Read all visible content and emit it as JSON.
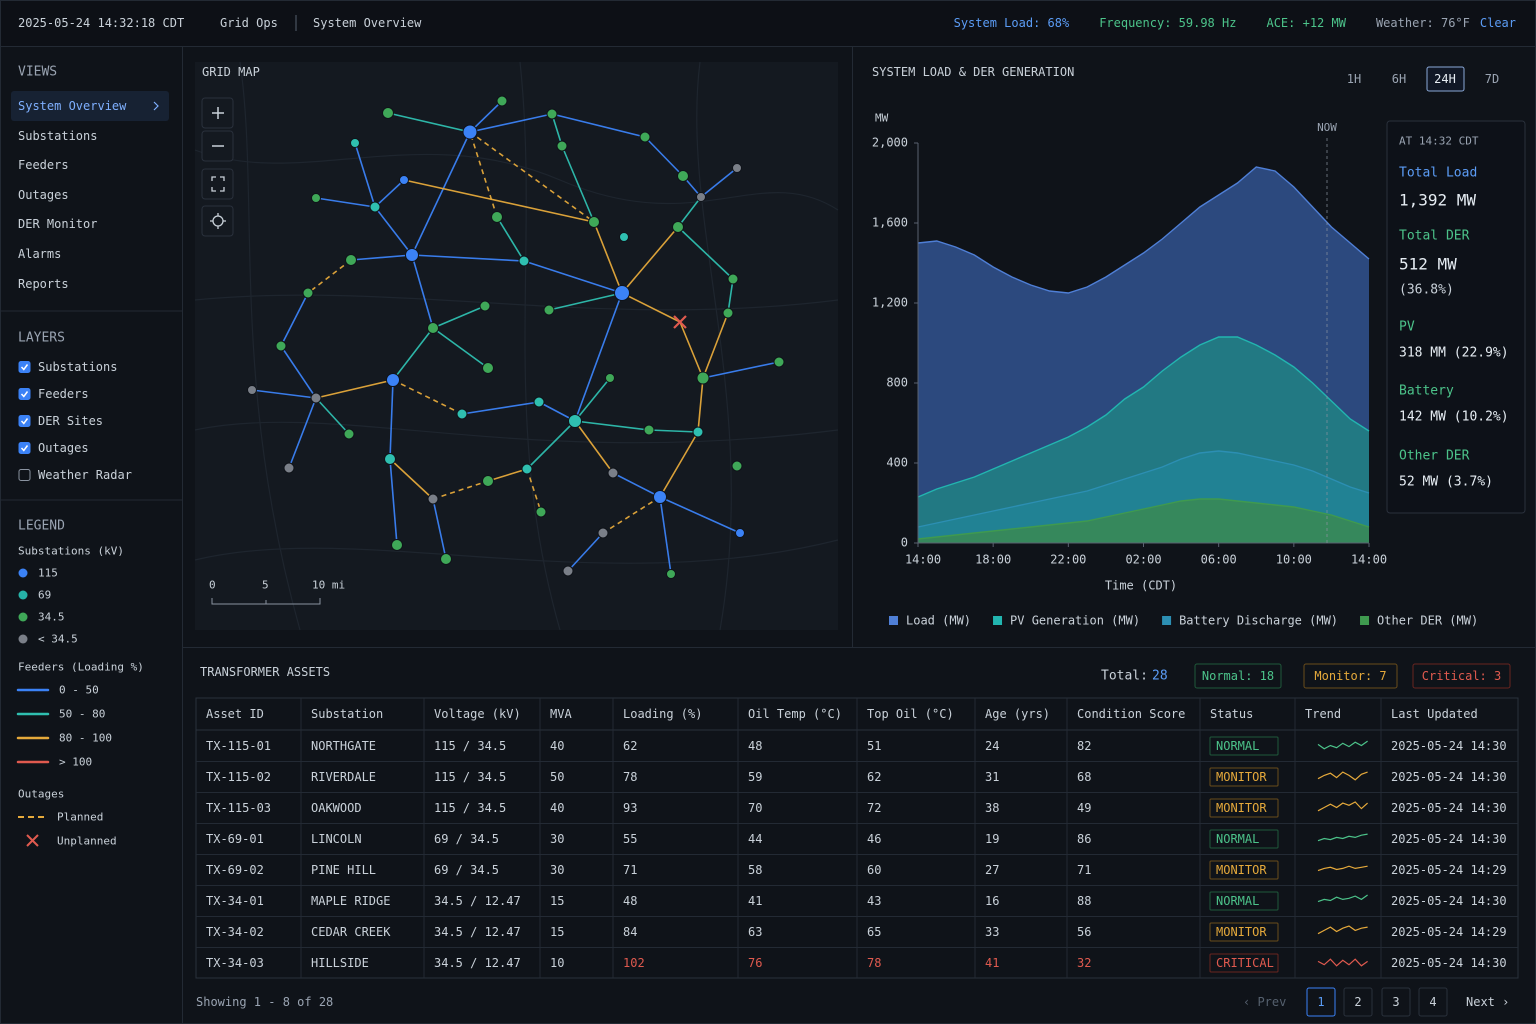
{
  "header": {
    "timestamp": "2025-05-24 14:32:18 CDT",
    "app": "Grid Ops",
    "page": "System Overview",
    "status": [
      {
        "text": "System Load: 68%",
        "color": "#5b9cf5"
      },
      {
        "text": "Frequency: 59.98 Hz",
        "color": "#4cc38a"
      },
      {
        "text": "ACE: +12 MW",
        "color": "#4cc38a"
      },
      {
        "text": "Weather: 76°F",
        "color": "#9aa4b2"
      },
      {
        "text": "Clear",
        "color": "#5b9cf5"
      }
    ]
  },
  "sidebar": {
    "views": {
      "title": "VIEWS",
      "items": [
        {
          "label": "System Overview",
          "active": true
        },
        {
          "label": "Substations"
        },
        {
          "label": "Feeders"
        },
        {
          "label": "Outages"
        },
        {
          "label": "DER Monitor"
        },
        {
          "label": "Alarms"
        },
        {
          "label": "Reports"
        }
      ]
    },
    "layers": {
      "title": "LAYERS",
      "items": [
        {
          "label": "Substations",
          "checked": true
        },
        {
          "label": "Feeders",
          "checked": true
        },
        {
          "label": "DER Sites",
          "checked": true
        },
        {
          "label": "Outages",
          "checked": true
        },
        {
          "label": "Weather Radar",
          "checked": false
        }
      ]
    },
    "legend": {
      "title": "LEGEND",
      "substations": {
        "title": "Substations (kV)",
        "items": [
          {
            "label": "115",
            "color": "#3b82f6"
          },
          {
            "label": "69",
            "color": "#26b3a8"
          },
          {
            "label": "34.5",
            "color": "#3fa858"
          },
          {
            "label": "< 34.5",
            "color": "#7a7f88"
          }
        ]
      },
      "feeders": {
        "title": "Feeders (Loading %)",
        "items": [
          {
            "label": "0 - 50",
            "color": "#3b82f6"
          },
          {
            "label": "50 - 80",
            "color": "#2fbfb0"
          },
          {
            "label": "80 - 100",
            "color": "#e5a93b"
          },
          {
            "label": "> 100",
            "color": "#e05a4f"
          }
        ]
      },
      "outages": {
        "title": "Outages",
        "items": [
          "Planned",
          "Unplanned"
        ]
      }
    }
  },
  "map": {
    "title": "GRID MAP",
    "scale": [
      "0",
      "5",
      "10 mi"
    ]
  },
  "chart_panel": {
    "title": "SYSTEM LOAD & DER GENERATION",
    "ranges": [
      {
        "label": "1H"
      },
      {
        "label": "6H"
      },
      {
        "label": "24H",
        "active": true
      },
      {
        "label": "7D"
      }
    ],
    "now": "NOW",
    "tooltip": {
      "title": "AT 14:32 CDT",
      "items": [
        {
          "label": "Total Load",
          "value": "1,392 MW"
        },
        {
          "label": "Total DER",
          "value": "512 MW",
          "note": "(36.8%)"
        },
        {
          "label": "PV",
          "value": "318 MM (22.9%)"
        },
        {
          "label": "Battery",
          "value": "142 MW (10.2%)"
        },
        {
          "label": "Other DER",
          "value": "52 MW (3.7%)"
        }
      ]
    }
  },
  "chart_data": {
    "type": "area",
    "y_label": "MW",
    "x_label": "Time (CDT)",
    "categories": [
      "14:00",
      null,
      null,
      null,
      "18:00",
      null,
      null,
      null,
      "22:00",
      null,
      null,
      null,
      "02:00",
      null,
      null,
      null,
      "06:00",
      null,
      null,
      null,
      "10:00",
      null,
      null,
      null,
      "14:00"
    ],
    "series": [
      {
        "name": "Load (MW)",
        "color": "#4f7fd6",
        "fill": "#30508a",
        "values": [
          1500,
          1510,
          1480,
          1440,
          1380,
          1330,
          1290,
          1260,
          1250,
          1280,
          1330,
          1390,
          1450,
          1520,
          1600,
          1680,
          1740,
          1800,
          1880,
          1860,
          1780,
          1680,
          1580,
          1500,
          1420
        ]
      },
      {
        "name": "PV Generation (MW)",
        "color": "#22b5b0",
        "fill": "#1f8a86",
        "values": [
          230,
          270,
          300,
          330,
          370,
          410,
          450,
          490,
          530,
          580,
          640,
          720,
          780,
          860,
          930,
          990,
          1030,
          1030,
          990,
          940,
          880,
          800,
          710,
          620,
          560
        ]
      },
      {
        "name": "Battery Discharge (MW)",
        "color": "#2c8fb3",
        "fill": "#22869a",
        "values": [
          80,
          100,
          120,
          140,
          160,
          180,
          200,
          220,
          240,
          260,
          290,
          320,
          350,
          380,
          420,
          450,
          460,
          450,
          430,
          410,
          390,
          360,
          320,
          280,
          250
        ]
      },
      {
        "name": "Other DER (MW)",
        "color": "#3f9a4f",
        "fill": "#3d8a4a",
        "values": [
          20,
          30,
          40,
          50,
          60,
          70,
          80,
          90,
          100,
          110,
          130,
          150,
          170,
          190,
          210,
          220,
          220,
          210,
          200,
          190,
          180,
          160,
          140,
          110,
          80
        ]
      }
    ],
    "ylim": [
      0,
      2000
    ],
    "yticks": [
      0,
      400,
      800,
      {
        "value": 1200,
        "label": "1,200"
      },
      {
        "value": 1600,
        "label": "1,600"
      },
      {
        "value": 2000,
        "label": "2,000"
      }
    ],
    "grid": false,
    "stacked": false
  },
  "table": {
    "title": "TRANSFORMER ASSETS",
    "summary": {
      "total_label": "Total:",
      "total": "28",
      "normal": "Normal: 18",
      "monitor": "Monitor: 7",
      "critical": "Critical: 3"
    },
    "columns": [
      "Asset ID",
      "Substation",
      "Voltage (kV)",
      "MVA",
      "Loading (%)",
      "Oil Temp (°C)",
      "Top Oil (°C)",
      "Age (yrs)",
      "Condition Score",
      "Status",
      "Trend",
      "Last Updated"
    ],
    "rows": [
      [
        "TX-115-01",
        "NORTHGATE",
        "115 / 34.5",
        "40",
        "62",
        "48",
        "51",
        "24",
        "82",
        "NORMAL",
        "2025-05-24 14:30"
      ],
      [
        "TX-115-02",
        "RIVERDALE",
        "115 / 34.5",
        "50",
        "78",
        "59",
        "62",
        "31",
        "68",
        "MONITOR",
        "2025-05-24 14:30"
      ],
      [
        "TX-115-03",
        "OAKWOOD",
        "115 / 34.5",
        "40",
        "93",
        "70",
        "72",
        "38",
        "49",
        "MONITOR",
        "2025-05-24 14:30"
      ],
      [
        "TX-69-01",
        "LINCOLN",
        "69 / 34.5",
        "30",
        "55",
        "44",
        "46",
        "19",
        "86",
        "NORMAL",
        "2025-05-24 14:30"
      ],
      [
        "TX-69-02",
        "PINE HILL",
        "69 / 34.5",
        "30",
        "71",
        "58",
        "60",
        "27",
        "71",
        "MONITOR",
        "2025-05-24 14:29"
      ],
      [
        "TX-34-01",
        "MAPLE RIDGE",
        "34.5 / 12.47",
        "15",
        "48",
        "41",
        "43",
        "16",
        "88",
        "NORMAL",
        "2025-05-24 14:30"
      ],
      [
        "TX-34-02",
        "CEDAR CREEK",
        "34.5 / 12.47",
        "15",
        "84",
        "63",
        "65",
        "33",
        "56",
        "MONITOR",
        "2025-05-24 14:29"
      ],
      [
        "TX-34-03",
        "HILLSIDE",
        "34.5 / 12.47",
        "10",
        "102",
        "76",
        "78",
        "41",
        "32",
        "CRITICAL",
        "2025-05-24 14:30"
      ]
    ],
    "footer": "Showing 1 - 8 of 28",
    "pagination": {
      "prev": "‹ Prev",
      "pages": [
        "1",
        "2",
        "3",
        "4"
      ],
      "current": "1",
      "next": "Next ›"
    }
  }
}
